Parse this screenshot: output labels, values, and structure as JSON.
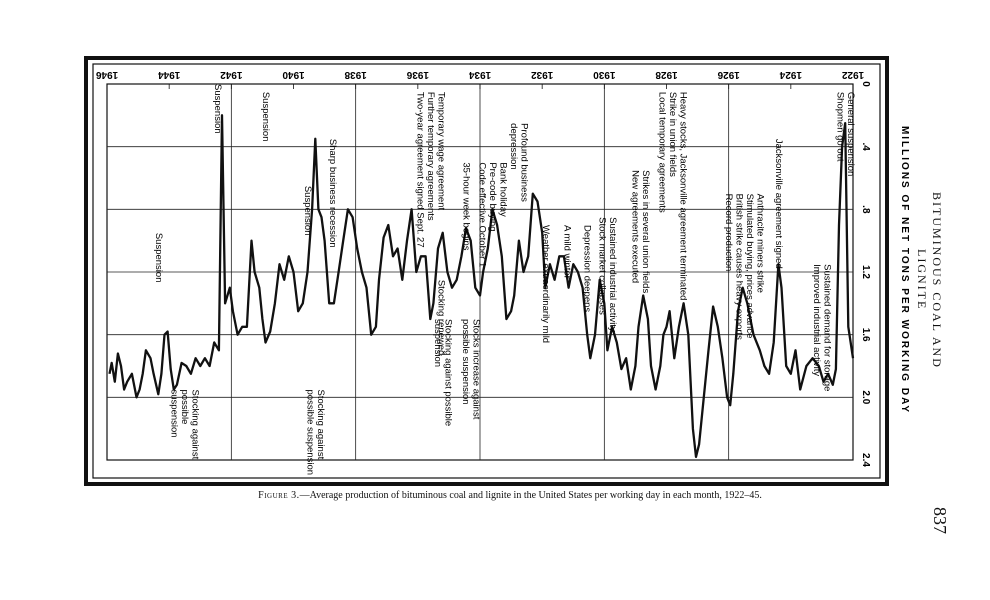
{
  "page": {
    "running_head": "BITUMINOUS COAL AND LIGNITE",
    "page_number": "837"
  },
  "caption": {
    "figure_label": "Figure 3.",
    "text": "—Average production of bituminous coal and lignite in the United States per working day in each month, 1922–45."
  },
  "chart_data": {
    "type": "line",
    "title": "",
    "ylabel": "MILLIONS OF NET TONS PER WORKING DAY",
    "xlabel": "",
    "orientation": "rotated-90-clockwise",
    "xlim": [
      1922,
      1946
    ],
    "ylim": [
      0,
      2.4
    ],
    "x_ticks": [
      "1922",
      "1924",
      "1926",
      "1928",
      "1930",
      "1932",
      "1934",
      "1936",
      "1938",
      "1940",
      "1942",
      "1944",
      "1946"
    ],
    "y_ticks": [
      "0",
      ".4",
      ".8",
      "1.2",
      "1.6",
      "2.0",
      "2.4"
    ],
    "grid": true,
    "series": [
      {
        "values": [
          [
            1922.0,
            1.75
          ],
          [
            1922.15,
            1.55
          ],
          [
            1922.25,
            0.25
          ],
          [
            1922.35,
            0.4
          ],
          [
            1922.45,
            0.9
          ],
          [
            1922.55,
            1.82
          ],
          [
            1922.65,
            1.92
          ],
          [
            1922.8,
            1.85
          ],
          [
            1922.95,
            1.9
          ],
          [
            1923.1,
            1.8
          ],
          [
            1923.3,
            1.75
          ],
          [
            1923.5,
            1.8
          ],
          [
            1923.7,
            1.95
          ],
          [
            1923.85,
            1.7
          ],
          [
            1924.0,
            1.85
          ],
          [
            1924.15,
            1.8
          ],
          [
            1924.3,
            1.3
          ],
          [
            1924.4,
            1.15
          ],
          [
            1924.55,
            1.65
          ],
          [
            1924.7,
            1.85
          ],
          [
            1924.85,
            1.8
          ],
          [
            1925.0,
            1.7
          ],
          [
            1925.2,
            1.6
          ],
          [
            1925.4,
            1.4
          ],
          [
            1925.55,
            1.3
          ],
          [
            1925.7,
            1.45
          ],
          [
            1925.85,
            1.85
          ],
          [
            1925.95,
            2.05
          ],
          [
            1926.05,
            2.0
          ],
          [
            1926.2,
            1.75
          ],
          [
            1926.35,
            1.55
          ],
          [
            1926.5,
            1.42
          ],
          [
            1926.65,
            1.7
          ],
          [
            1926.8,
            2.0
          ],
          [
            1926.95,
            2.3
          ],
          [
            1927.05,
            2.38
          ],
          [
            1927.15,
            2.2
          ],
          [
            1927.3,
            1.6
          ],
          [
            1927.45,
            1.4
          ],
          [
            1927.6,
            1.55
          ],
          [
            1927.75,
            1.75
          ],
          [
            1927.9,
            1.45
          ],
          [
            1928.0,
            1.55
          ],
          [
            1928.1,
            1.6
          ],
          [
            1928.2,
            1.8
          ],
          [
            1928.35,
            1.95
          ],
          [
            1928.5,
            1.8
          ],
          [
            1928.6,
            1.5
          ],
          [
            1928.75,
            1.35
          ],
          [
            1928.9,
            1.55
          ],
          [
            1929.0,
            1.8
          ],
          [
            1929.15,
            1.95
          ],
          [
            1929.3,
            1.75
          ],
          [
            1929.45,
            1.82
          ],
          [
            1929.6,
            1.65
          ],
          [
            1929.75,
            1.55
          ],
          [
            1929.9,
            1.7
          ],
          [
            1930.0,
            1.4
          ],
          [
            1930.15,
            1.25
          ],
          [
            1930.3,
            1.6
          ],
          [
            1930.45,
            1.75
          ],
          [
            1930.55,
            1.6
          ],
          [
            1930.7,
            1.3
          ],
          [
            1930.85,
            1.2
          ],
          [
            1931.0,
            1.15
          ],
          [
            1931.15,
            1.3
          ],
          [
            1931.3,
            1.1
          ],
          [
            1931.45,
            1.1
          ],
          [
            1931.6,
            1.25
          ],
          [
            1931.75,
            1.15
          ],
          [
            1931.9,
            1.3
          ],
          [
            1932.0,
            0.95
          ],
          [
            1932.15,
            0.75
          ],
          [
            1932.3,
            0.7
          ],
          [
            1932.45,
            1.1
          ],
          [
            1932.6,
            1.2
          ],
          [
            1932.75,
            1.0
          ],
          [
            1932.9,
            1.35
          ],
          [
            1933.0,
            1.45
          ],
          [
            1933.15,
            1.5
          ],
          [
            1933.3,
            1.1
          ],
          [
            1933.45,
            0.9
          ],
          [
            1933.6,
            0.8
          ],
          [
            1933.75,
            1.05
          ],
          [
            1933.9,
            1.2
          ],
          [
            1934.0,
            1.35
          ],
          [
            1934.15,
            1.3
          ],
          [
            1934.3,
            1.0
          ],
          [
            1934.45,
            0.92
          ],
          [
            1934.6,
            1.1
          ],
          [
            1934.75,
            1.25
          ],
          [
            1934.9,
            1.3
          ],
          [
            1935.05,
            1.2
          ],
          [
            1935.2,
            0.95
          ],
          [
            1935.35,
            1.05
          ],
          [
            1935.5,
            1.4
          ],
          [
            1935.6,
            1.5
          ],
          [
            1935.75,
            1.1
          ],
          [
            1935.9,
            1.1
          ],
          [
            1936.05,
            1.2
          ],
          [
            1936.2,
            0.8
          ],
          [
            1936.35,
            1.0
          ],
          [
            1936.5,
            1.25
          ],
          [
            1936.65,
            1.05
          ],
          [
            1936.8,
            1.1
          ],
          [
            1936.95,
            0.9
          ],
          [
            1937.1,
            0.98
          ],
          [
            1937.25,
            1.25
          ],
          [
            1937.35,
            1.55
          ],
          [
            1937.5,
            1.6
          ],
          [
            1937.65,
            1.3
          ],
          [
            1937.8,
            1.2
          ],
          [
            1937.95,
            1.05
          ],
          [
            1938.1,
            0.85
          ],
          [
            1938.25,
            0.8
          ],
          [
            1938.4,
            1.0
          ],
          [
            1938.55,
            1.2
          ],
          [
            1938.7,
            1.4
          ],
          [
            1938.85,
            1.4
          ],
          [
            1939.0,
            1.0
          ],
          [
            1939.1,
            0.85
          ],
          [
            1939.2,
            0.8
          ],
          [
            1939.3,
            0.35
          ],
          [
            1939.4,
            0.8
          ],
          [
            1939.55,
            1.2
          ],
          [
            1939.7,
            1.4
          ],
          [
            1939.85,
            1.45
          ],
          [
            1940.0,
            1.2
          ],
          [
            1940.15,
            1.1
          ],
          [
            1940.3,
            1.25
          ],
          [
            1940.45,
            1.15
          ],
          [
            1940.6,
            1.4
          ],
          [
            1940.75,
            1.58
          ],
          [
            1940.9,
            1.65
          ],
          [
            1941.0,
            1.5
          ],
          [
            1941.1,
            1.3
          ],
          [
            1941.25,
            1.2
          ],
          [
            1941.35,
            1.0
          ],
          [
            1941.5,
            1.55
          ],
          [
            1941.65,
            1.55
          ],
          [
            1941.8,
            1.6
          ],
          [
            1941.95,
            1.45
          ],
          [
            1942.05,
            1.3
          ],
          [
            1942.2,
            1.4
          ],
          [
            1942.3,
            0.2
          ],
          [
            1942.4,
            1.7
          ],
          [
            1942.55,
            1.65
          ],
          [
            1942.7,
            1.8
          ],
          [
            1942.85,
            1.75
          ],
          [
            1943.0,
            1.8
          ],
          [
            1943.15,
            1.75
          ],
          [
            1943.3,
            1.85
          ],
          [
            1943.45,
            1.8
          ],
          [
            1943.6,
            1.78
          ],
          [
            1943.75,
            1.92
          ],
          [
            1943.85,
            1.95
          ],
          [
            1943.95,
            1.82
          ],
          [
            1944.05,
            1.58
          ],
          [
            1944.15,
            1.6
          ],
          [
            1944.25,
            1.85
          ],
          [
            1944.35,
            1.98
          ],
          [
            1944.5,
            1.85
          ],
          [
            1944.6,
            1.75
          ],
          [
            1944.75,
            1.7
          ],
          [
            1944.85,
            1.85
          ],
          [
            1944.95,
            1.95
          ],
          [
            1945.05,
            2.0
          ],
          [
            1945.2,
            1.85
          ],
          [
            1945.35,
            1.9
          ],
          [
            1945.45,
            1.95
          ],
          [
            1945.55,
            1.8
          ],
          [
            1945.65,
            1.72
          ],
          [
            1945.75,
            1.9
          ],
          [
            1945.85,
            1.78
          ],
          [
            1945.92,
            1.85
          ]
        ]
      }
    ],
    "annotations": [
      {
        "x": 1922.25,
        "y": 0.05,
        "lines": [
          "General suspension",
          "Shopmen go out"
        ]
      },
      {
        "x": 1923.0,
        "y": 1.15,
        "lines": [
          "Sustained demand for storage",
          "Improved industrial activity"
        ]
      },
      {
        "x": 1924.4,
        "y": 0.35,
        "lines": [
          "Jacksonville agreement signed"
        ]
      },
      {
        "x": 1925.5,
        "y": 0.7,
        "lines": [
          "Anthracite miners strike",
          "Stimulated buying, prices advance",
          "British strike causes heavy exports",
          "Record production"
        ]
      },
      {
        "x": 1927.8,
        "y": 0.05,
        "lines": [
          "Heavy stocks, Jacksonville agreement terminated",
          "Strike in union fields",
          "Local temporary agreements"
        ]
      },
      {
        "x": 1928.85,
        "y": 0.55,
        "lines": [
          "Strikes in several union fields",
          "New agreements executed"
        ]
      },
      {
        "x": 1929.9,
        "y": 0.85,
        "lines": [
          "Sustained industrial activity",
          "Stock market collapses"
        ]
      },
      {
        "x": 1930.55,
        "y": 0.9,
        "lines": [
          "Depression deepens"
        ]
      },
      {
        "x": 1931.2,
        "y": 0.9,
        "lines": [
          "A mild winter"
        ]
      },
      {
        "x": 1931.9,
        "y": 0.9,
        "lines": [
          "Weather extraordinarily mild"
        ]
      },
      {
        "x": 1932.75,
        "y": 0.25,
        "lines": [
          "Profound business",
          "depression"
        ]
      },
      {
        "x": 1933.6,
        "y": 0.5,
        "lines": [
          "Bank holiday",
          "Pre-code buying",
          "Code effective October 1"
        ]
      },
      {
        "x": 1934.45,
        "y": 0.5,
        "lines": [
          "35-hour week begins"
        ]
      },
      {
        "x": 1935.6,
        "y": 0.05,
        "lines": [
          "Temporary wage agreement",
          "Further temporary agreements",
          "Two-year agreement signed Sept. 27"
        ]
      },
      {
        "x": 1935.25,
        "y": 1.25,
        "lines": [
          "Stocking renewed"
        ]
      },
      {
        "x": 1934.3,
        "y": 1.5,
        "lines": [
          "Stocks increase against",
          "possible suspension"
        ]
      },
      {
        "x": 1935.2,
        "y": 1.5,
        "lines": [
          "Stocking against possible",
          "suspension"
        ]
      },
      {
        "x": 1938.75,
        "y": 0.35,
        "lines": [
          "Sharp business recession"
        ]
      },
      {
        "x": 1939.55,
        "y": 0.65,
        "lines": [
          "Suspension"
        ]
      },
      {
        "x": 1939.3,
        "y": 1.95,
        "lines": [
          "Stocking against",
          "possible suspension"
        ]
      },
      {
        "x": 1940.9,
        "y": 0.05,
        "lines": [
          "Suspension"
        ]
      },
      {
        "x": 1942.45,
        "y": 0.0,
        "lines": [
          "Suspension"
        ]
      },
      {
        "x": 1944.35,
        "y": 0.95,
        "lines": [
          "Suspension"
        ]
      },
      {
        "x": 1943.5,
        "y": 1.95,
        "lines": [
          "Stocking against",
          "possible",
          "suspension"
        ]
      }
    ]
  }
}
